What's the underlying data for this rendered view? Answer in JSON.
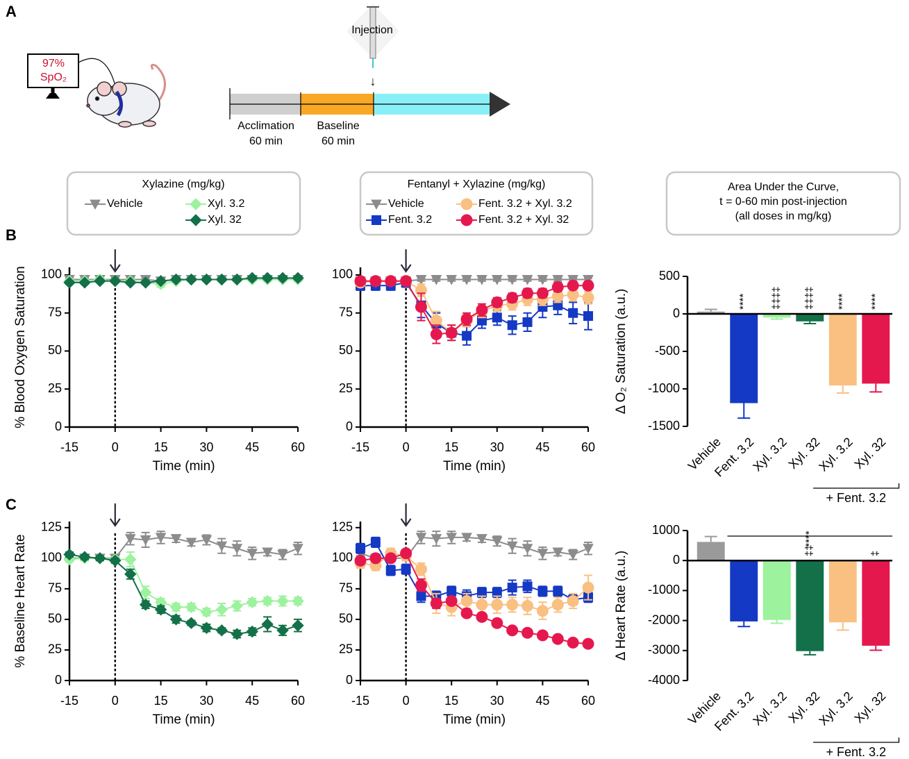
{
  "panel_labels": [
    "A",
    "B",
    "C"
  ],
  "schematic": {
    "monitor_value": "97%",
    "monitor_label": "SpO₂",
    "injection": "Injection",
    "phases": [
      {
        "name": "Acclimation",
        "duration": "60 min"
      },
      {
        "name": "Baseline",
        "duration": "60 min"
      }
    ]
  },
  "chart_data": [
    {
      "type": "line",
      "legend_title": "Xylazine (mg/kg)",
      "y_label": "% Blood Oxygen Saturation",
      "x_label": "Time (min)",
      "x": [
        -15,
        -10,
        -5,
        0,
        5,
        10,
        15,
        20,
        25,
        30,
        35,
        40,
        45,
        50,
        55,
        60
      ],
      "xlim": [
        -15,
        60
      ],
      "xticks": [
        -15,
        0,
        15,
        30,
        45,
        60
      ],
      "ylim": [
        0,
        105
      ],
      "yticks": [
        0,
        25,
        50,
        75,
        100
      ],
      "vline": 0,
      "series": [
        {
          "name": "Vehicle",
          "color": "#8c8c8c",
          "marker": "triangle-down",
          "values": [
            97,
            97,
            97,
            97,
            97,
            97,
            96,
            97,
            97,
            97,
            97,
            97,
            97,
            97,
            97,
            97
          ],
          "errors": [
            1,
            1,
            1,
            1,
            1,
            1,
            1,
            1,
            1,
            1,
            1,
            1,
            1,
            1,
            1,
            1
          ]
        },
        {
          "name": "Xyl. 3.2",
          "color": "#9df29d",
          "marker": "diamond",
          "values": [
            96,
            96,
            97,
            96,
            96,
            95,
            94,
            96,
            97,
            97,
            97,
            97,
            97,
            97,
            97,
            97
          ],
          "errors": [
            1,
            1,
            1,
            1,
            1,
            1,
            2,
            1,
            1,
            1,
            1,
            1,
            1,
            1,
            1,
            1
          ]
        },
        {
          "name": "Xyl. 32",
          "color": "#137049",
          "marker": "diamond",
          "values": [
            95,
            95,
            96,
            96,
            95,
            95,
            96,
            97,
            97,
            97,
            97,
            97,
            98,
            98,
            98,
            98
          ],
          "errors": [
            1,
            1,
            1,
            1,
            1,
            1,
            1,
            1,
            1,
            1,
            1,
            1,
            1,
            1,
            1,
            1
          ]
        }
      ]
    },
    {
      "type": "line",
      "legend_title": "Fentanyl + Xylazine (mg/kg)",
      "x_label": "Time (min)",
      "x": [
        -15,
        -10,
        -5,
        0,
        5,
        10,
        15,
        20,
        25,
        30,
        35,
        40,
        45,
        50,
        55,
        60
      ],
      "xlim": [
        -15,
        60
      ],
      "xticks": [
        -15,
        0,
        15,
        30,
        45,
        60
      ],
      "ylim": [
        0,
        105
      ],
      "yticks": [
        0,
        25,
        50,
        75,
        100
      ],
      "vline": 0,
      "series": [
        {
          "name": "Vehicle",
          "color": "#8c8c8c",
          "marker": "triangle-down",
          "values": [
            96,
            96,
            96,
            96,
            97,
            97,
            97,
            97,
            97,
            97,
            97,
            97,
            97,
            97,
            97,
            97
          ],
          "errors": [
            1,
            1,
            1,
            1,
            1,
            1,
            1,
            1,
            1,
            1,
            1,
            1,
            1,
            1,
            1,
            1
          ]
        },
        {
          "name": "Fent. 3.2",
          "color": "#1439c4",
          "marker": "square",
          "values": [
            93,
            93,
            93,
            95,
            80,
            68,
            62,
            60,
            70,
            72,
            67,
            69,
            79,
            80,
            75,
            73
          ],
          "errors": [
            3,
            3,
            3,
            3,
            8,
            7,
            5,
            6,
            5,
            5,
            6,
            6,
            7,
            6,
            7,
            9
          ]
        },
        {
          "name": "Fent. 3.2 + Xyl. 3.2",
          "color": "#f9c082",
          "marker": "circle",
          "values": [
            95,
            96,
            96,
            96,
            90,
            70,
            62,
            70,
            76,
            80,
            81,
            84,
            84,
            86,
            87,
            85
          ],
          "errors": [
            2,
            2,
            2,
            2,
            4,
            6,
            5,
            4,
            4,
            4,
            4,
            4,
            4,
            4,
            4,
            4
          ]
        },
        {
          "name": "Fent. 3.2 + Xyl. 32",
          "color": "#e5184e",
          "marker": "circle",
          "values": [
            96,
            96,
            96,
            96,
            79,
            61,
            62,
            71,
            77,
            82,
            85,
            88,
            88,
            92,
            93,
            93
          ],
          "errors": [
            2,
            2,
            2,
            2,
            9,
            6,
            5,
            4,
            4,
            3,
            3,
            3,
            3,
            3,
            2,
            2
          ]
        }
      ]
    },
    {
      "type": "bar",
      "title_lines": [
        "Area Under the Curve,",
        "t = 0-60 min post-injection",
        "(all doses in mg/kg)"
      ],
      "y_label": "Δ O₂ Saturation (a.u.)",
      "categories": [
        "Vehicle",
        "Fent. 3.2",
        "Xyl. 3.2",
        "Xyl. 32",
        "Xyl. 3.2",
        "Xyl. 32"
      ],
      "values": [
        30,
        -1190,
        -50,
        -100,
        -955,
        -930
      ],
      "errors": [
        30,
        200,
        20,
        30,
        100,
        110
      ],
      "colors": [
        "#9a9a9a",
        "#1439c4",
        "#9df29d",
        "#137049",
        "#f9c082",
        "#e5184e"
      ],
      "ylim": [
        -1500,
        500
      ],
      "yticks": [
        -1500,
        -1000,
        -500,
        0,
        500
      ],
      "annotations": [
        {
          "text": "****",
          "category": 1
        },
        {
          "text": "‡‡‡‡",
          "category": 2
        },
        {
          "text": "‡‡‡‡",
          "category": 3
        },
        {
          "text": "****",
          "category": 4
        },
        {
          "text": "****",
          "category": 5
        }
      ],
      "bracket": {
        "text": "+ Fent. 3.2",
        "from": 4,
        "to": 5
      }
    },
    {
      "type": "line",
      "y_label": "% Baseline Heart Rate",
      "x_label": "Time (min)",
      "x": [
        -15,
        -10,
        -5,
        0,
        5,
        10,
        15,
        20,
        25,
        30,
        35,
        40,
        45,
        50,
        55,
        60
      ],
      "xlim": [
        -15,
        60
      ],
      "xticks": [
        -15,
        0,
        15,
        30,
        45,
        60
      ],
      "ylim": [
        0,
        130
      ],
      "yticks": [
        0,
        25,
        50,
        75,
        100,
        125
      ],
      "vline": 0,
      "series": [
        {
          "color": "#8c8c8c",
          "marker": "triangle-down",
          "values": [
            100,
            100,
            100,
            100,
            116,
            115,
            117,
            116,
            113,
            115,
            110,
            108,
            104,
            105,
            103,
            108
          ],
          "errors": [
            2,
            2,
            2,
            2,
            5,
            6,
            5,
            3,
            3,
            4,
            6,
            6,
            5,
            3,
            4,
            5
          ]
        },
        {
          "color": "#9df29d",
          "marker": "diamond",
          "values": [
            99,
            100,
            100,
            99,
            99,
            72,
            64,
            60,
            60,
            56,
            58,
            61,
            64,
            65,
            65,
            65
          ],
          "errors": [
            2,
            2,
            2,
            2,
            6,
            5,
            3,
            3,
            3,
            3,
            5,
            4,
            3,
            3,
            4,
            3
          ]
        },
        {
          "color": "#137049",
          "marker": "diamond",
          "values": [
            103,
            101,
            100,
            98,
            87,
            62,
            58,
            50,
            47,
            43,
            41,
            38,
            40,
            46,
            41,
            45
          ],
          "errors": [
            2,
            2,
            2,
            2,
            4,
            3,
            3,
            3,
            2,
            3,
            2,
            3,
            3,
            6,
            4,
            5
          ]
        }
      ]
    },
    {
      "type": "line",
      "x_label": "Time (min)",
      "x": [
        -15,
        -10,
        -5,
        0,
        5,
        10,
        15,
        20,
        25,
        30,
        35,
        40,
        45,
        50,
        55,
        60
      ],
      "xlim": [
        -15,
        60
      ],
      "xticks": [
        -15,
        0,
        15,
        30,
        45,
        60
      ],
      "ylim": [
        0,
        130
      ],
      "yticks": [
        0,
        25,
        50,
        75,
        100,
        125
      ],
      "vline": 0,
      "series": [
        {
          "color": "#8c8c8c",
          "marker": "triangle-down",
          "values": [
            104,
            100,
            100,
            100,
            117,
            116,
            117,
            117,
            116,
            114,
            110,
            108,
            104,
            105,
            103,
            108
          ],
          "errors": [
            2,
            2,
            2,
            2,
            5,
            6,
            5,
            3,
            3,
            4,
            6,
            6,
            5,
            3,
            4,
            5
          ]
        },
        {
          "color": "#1439c4",
          "marker": "square",
          "values": [
            108,
            113,
            90,
            91,
            69,
            69,
            73,
            69,
            72,
            72,
            76,
            77,
            73,
            73,
            66,
            68
          ],
          "errors": [
            4,
            4,
            4,
            4,
            5,
            4,
            4,
            5,
            4,
            4,
            6,
            5,
            4,
            4,
            4,
            4
          ]
        },
        {
          "color": "#f9c082",
          "marker": "circle",
          "values": [
            96,
            94,
            104,
            102,
            91,
            63,
            60,
            65,
            62,
            62,
            62,
            61,
            57,
            62,
            65,
            76
          ],
          "errors": [
            4,
            4,
            4,
            4,
            5,
            8,
            7,
            6,
            7,
            7,
            6,
            7,
            7,
            6,
            6,
            10
          ]
        },
        {
          "color": "#e5184e",
          "marker": "circle",
          "values": [
            98,
            100,
            100,
            104,
            78,
            63,
            65,
            55,
            52,
            47,
            41,
            39,
            37,
            34,
            31,
            30
          ],
          "errors": [
            3,
            3,
            3,
            3,
            5,
            4,
            3,
            3,
            3,
            3,
            2,
            2,
            2,
            2,
            2,
            2
          ]
        }
      ]
    },
    {
      "type": "bar",
      "y_label": "Δ Heart Rate (a.u.)",
      "categories": [
        "Vehicle",
        "Fent. 3.2",
        "Xyl. 3.2",
        "Xyl. 32",
        "Xyl. 3.2",
        "Xyl. 32"
      ],
      "values": [
        620,
        -2030,
        -1980,
        -3020,
        -2060,
        -2840
      ],
      "errors": [
        180,
        170,
        110,
        120,
        260,
        150
      ],
      "colors": [
        "#9a9a9a",
        "#1439c4",
        "#9df29d",
        "#137049",
        "#f9c082",
        "#e5184e"
      ],
      "ylim": [
        -4000,
        1000
      ],
      "yticks": [
        -4000,
        -3000,
        -2000,
        -1000,
        0,
        1000
      ],
      "annotations": [
        {
          "text": "****",
          "from": 1,
          "to": 5
        },
        {
          "text": "‡‡",
          "category": 3
        },
        {
          "text": "‡",
          "category": 5
        }
      ],
      "bracket": {
        "text": "+ Fent. 3.2",
        "from": 4,
        "to": 5
      }
    }
  ]
}
